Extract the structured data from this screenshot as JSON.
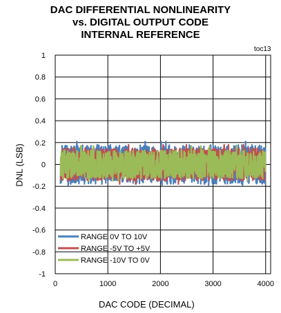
{
  "chart_data": {
    "type": "line",
    "title": [
      "DAC DIFFERENTIAL NONLINEARITY",
      "vs. DIGITAL OUTPUT CODE",
      "INTERNAL REFERENCE"
    ],
    "annotation": "toc13",
    "xlabel": "DAC CODE (DECIMAL)",
    "ylabel": "DNL (LSB)",
    "xlim": [
      0,
      4095
    ],
    "ylim": [
      -1,
      1
    ],
    "x_ticks": [
      0,
      1000,
      2000,
      3000,
      4000
    ],
    "x_tick_labels": [
      "0",
      "1000",
      "2000",
      "3000",
      "4000"
    ],
    "y_ticks": [
      1,
      0.8,
      0.6,
      0.4,
      0.2,
      0,
      -0.2,
      -0.4,
      -0.6,
      -0.8,
      -1
    ],
    "y_tick_labels": [
      "1",
      "0.8",
      "0.6",
      "0.4",
      "0.2",
      "0",
      "-0.2",
      "-0.4",
      "-0.6",
      "-0.8",
      "-1"
    ],
    "grid": true,
    "legend_position": "bottom-left",
    "x_data_range": [
      100,
      3995
    ],
    "series": [
      {
        "name": "RANGE 0V TO 10V",
        "color": "#4a7ebb",
        "typical_peak": 0.18,
        "max_peak": 0.21,
        "min_peak": -0.19
      },
      {
        "name": "RANGE -5V TO +5V",
        "color": "#c0504d",
        "typical_peak": 0.15,
        "max_peak": 0.18,
        "min_peak": -0.18
      },
      {
        "name": "RANGE -10V TO 0V",
        "color": "#9bbb59",
        "typical_peak": 0.13,
        "max_peak": 0.17,
        "min_peak": -0.15
      }
    ]
  }
}
